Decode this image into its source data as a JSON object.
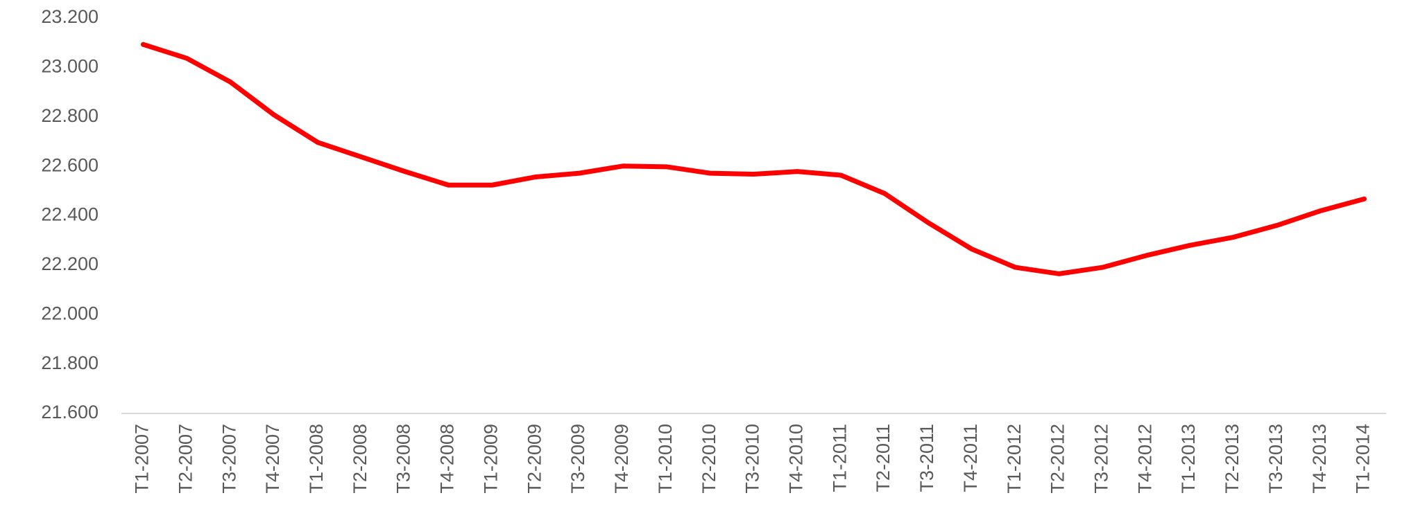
{
  "chart_data": {
    "type": "line",
    "categories": [
      "T1-2007",
      "T2-2007",
      "T3-2007",
      "T4-2007",
      "T1-2008",
      "T2-2008",
      "T3-2008",
      "T4-2008",
      "T1-2009",
      "T2-2009",
      "T3-2009",
      "T4-2009",
      "T1-2010",
      "T2-2010",
      "T3-2010",
      "T4-2010",
      "T1-2011",
      "T2-2011",
      "T3-2011",
      "T4-2011",
      "T1-2012",
      "T2-2012",
      "T3-2012",
      "T4-2012",
      "T1-2013",
      "T2-2013",
      "T3-2013",
      "T4-2013",
      "T1-2014"
    ],
    "values": [
      23093,
      23037,
      22941,
      22808,
      22697,
      22638,
      22579,
      22524,
      22524,
      22557,
      22572,
      22601,
      22598,
      22572,
      22568,
      22579,
      22564,
      22490,
      22372,
      22265,
      22191,
      22165,
      22191,
      22239,
      22280,
      22313,
      22361,
      22420,
      22468
    ],
    "color": "#ff0000",
    "ylim": [
      21600,
      23200
    ],
    "yticks": [
      {
        "value": 21600,
        "label": "21.600"
      },
      {
        "value": 21800,
        "label": "21.800"
      },
      {
        "value": 22000,
        "label": "22.000"
      },
      {
        "value": 22200,
        "label": "22.200"
      },
      {
        "value": 22400,
        "label": "22.400"
      },
      {
        "value": 22600,
        "label": "22.600"
      },
      {
        "value": 22800,
        "label": "22.800"
      },
      {
        "value": 23000,
        "label": "23.000"
      },
      {
        "value": 23200,
        "label": "23.200"
      }
    ],
    "grid": false
  }
}
